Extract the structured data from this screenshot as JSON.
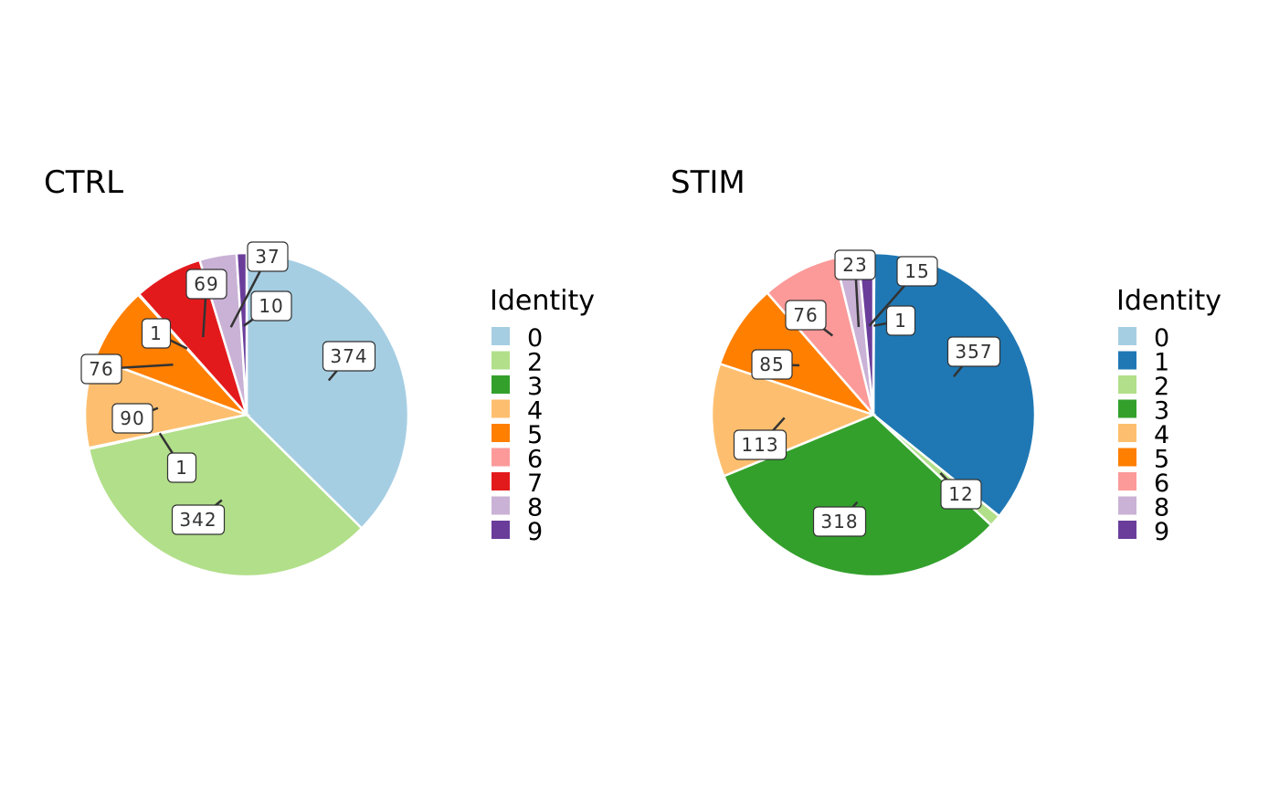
{
  "chart_data": [
    {
      "type": "pie",
      "title": "CTRL",
      "legend_title": "Identity",
      "legend_position": "right",
      "slices": [
        {
          "identity": "0",
          "value": 374,
          "color": "#A6CEE3"
        },
        {
          "identity": "2",
          "value": 342,
          "color": "#B2DF8A"
        },
        {
          "identity": "3",
          "value": 1,
          "color": "#33A02C"
        },
        {
          "identity": "4",
          "value": 90,
          "color": "#FDBF6F"
        },
        {
          "identity": "5",
          "value": 76,
          "color": "#FF7F00"
        },
        {
          "identity": "6",
          "value": 1,
          "color": "#FB9A99"
        },
        {
          "identity": "7",
          "value": 69,
          "color": "#E31A1C"
        },
        {
          "identity": "8",
          "value": 37,
          "color": "#CAB2D6"
        },
        {
          "identity": "9",
          "value": 10,
          "color": "#6A3D9A"
        }
      ]
    },
    {
      "type": "pie",
      "title": "STIM",
      "legend_title": "Identity",
      "legend_position": "right",
      "slices": [
        {
          "identity": "0",
          "value": 1,
          "color": "#A6CEE3"
        },
        {
          "identity": "1",
          "value": 357,
          "color": "#1F78B4"
        },
        {
          "identity": "2",
          "value": 12,
          "color": "#B2DF8A"
        },
        {
          "identity": "3",
          "value": 318,
          "color": "#33A02C"
        },
        {
          "identity": "4",
          "value": 113,
          "color": "#FDBF6F"
        },
        {
          "identity": "5",
          "value": 85,
          "color": "#FF7F00"
        },
        {
          "identity": "6",
          "value": 76,
          "color": "#FB9A99"
        },
        {
          "identity": "8",
          "value": 23,
          "color": "#CAB2D6"
        },
        {
          "identity": "9",
          "value": 15,
          "color": "#6A3D9A"
        }
      ]
    }
  ]
}
